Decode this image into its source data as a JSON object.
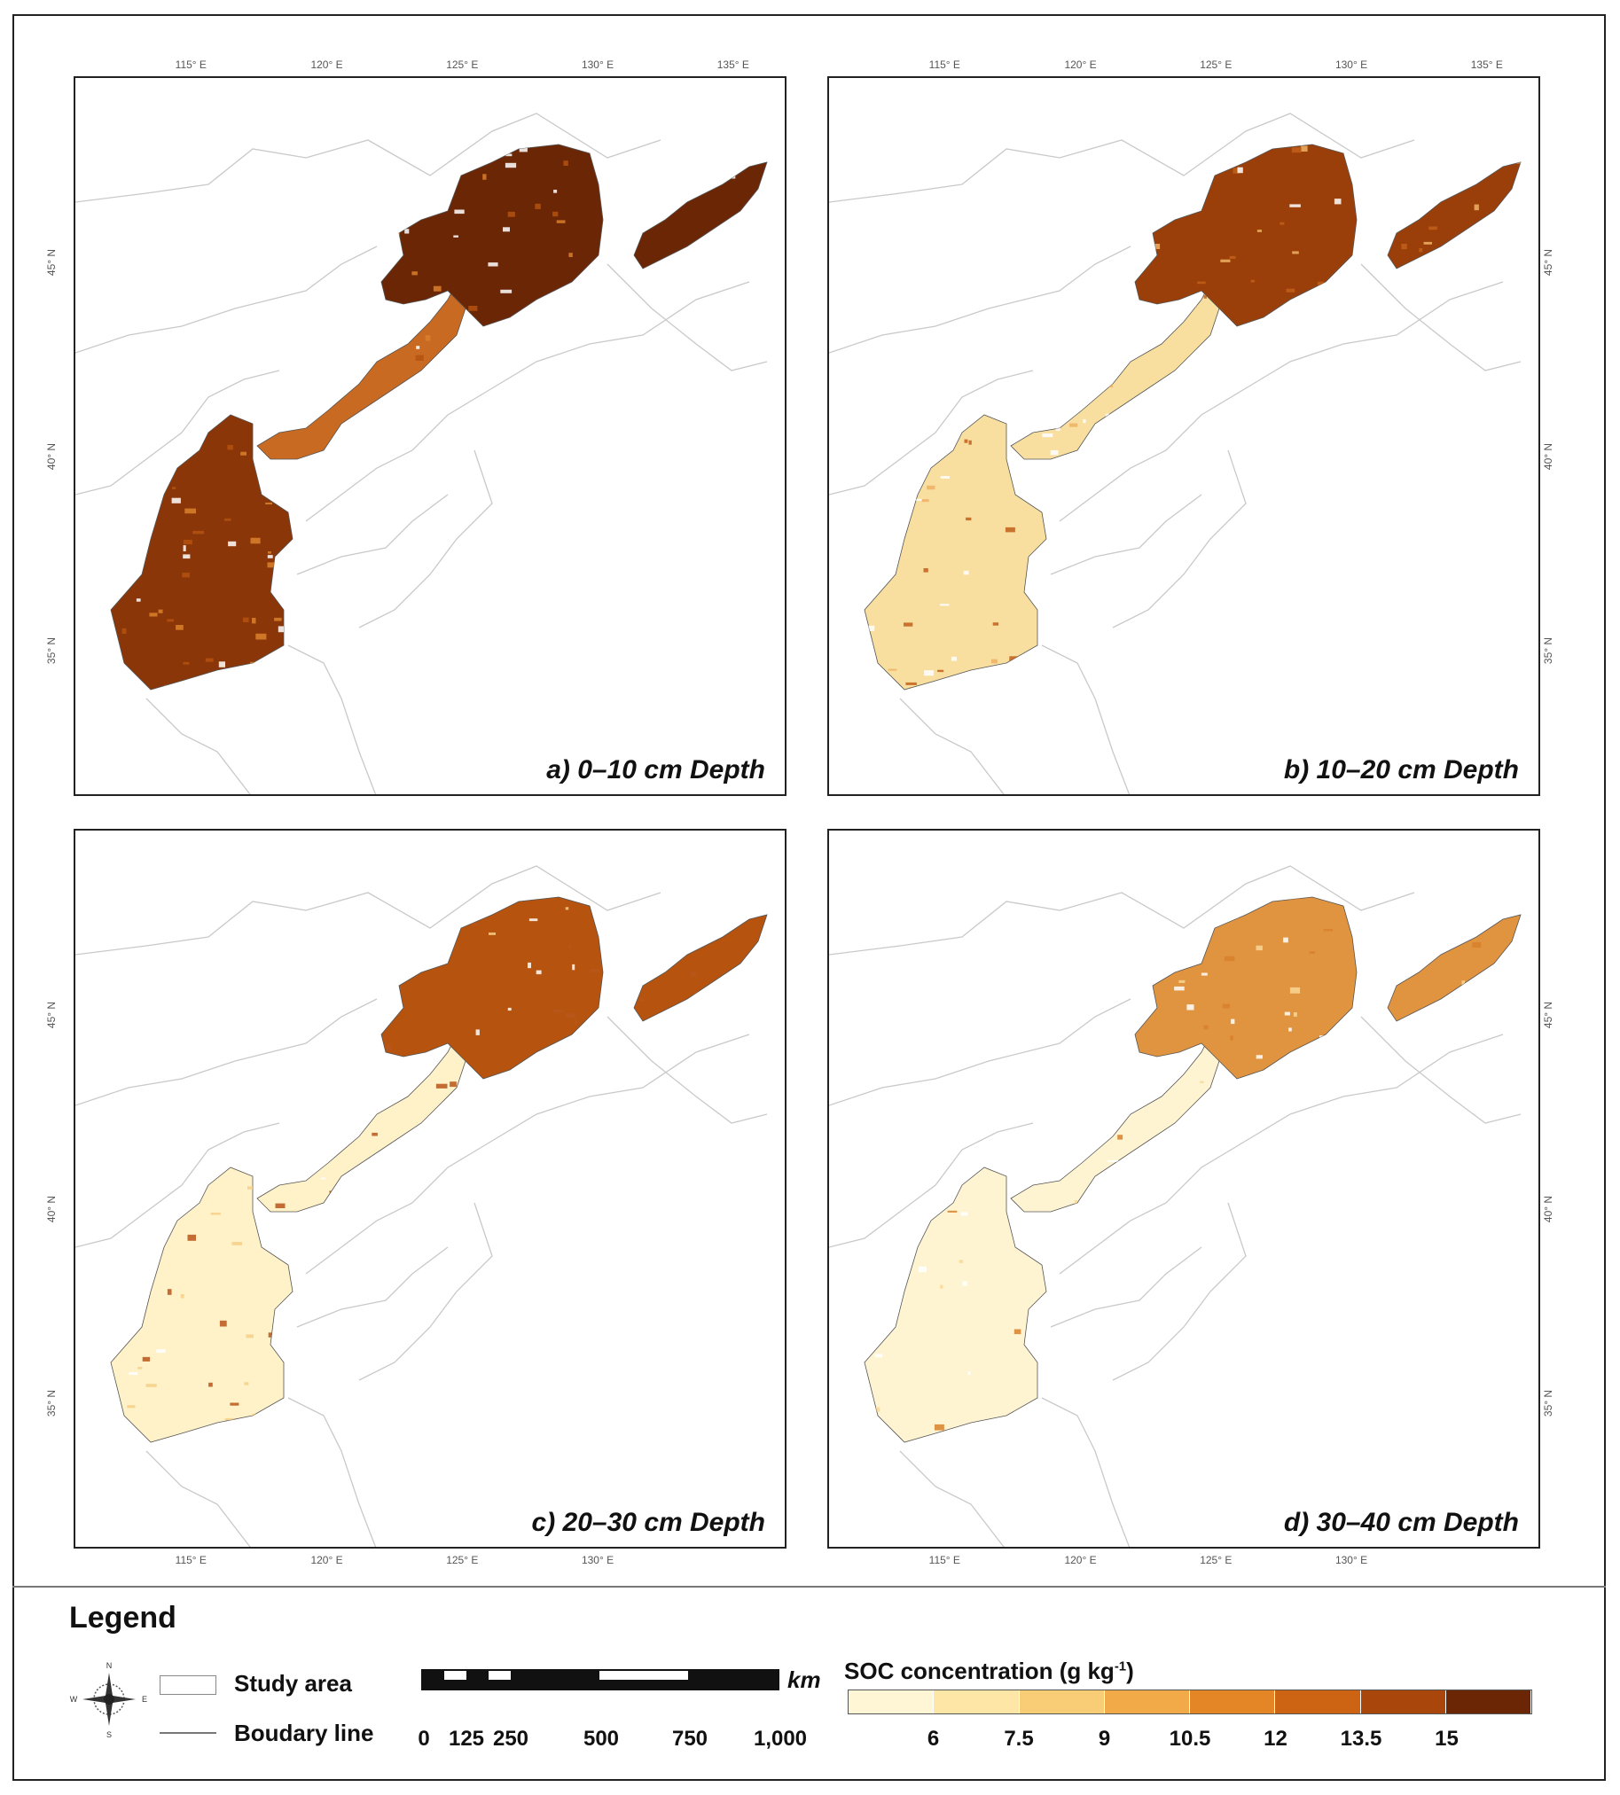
{
  "panels": [
    {
      "label": "a)  0–10 cm Depth",
      "top_ticks": [
        "115° E",
        "120° E",
        "125° E",
        "130° E",
        "135° E"
      ],
      "side_ticks": [
        "45° N",
        "40° N",
        "35° N"
      ],
      "bottom_ticks": [],
      "tone": "dark"
    },
    {
      "label": "b) 10–20 cm Depth",
      "top_ticks": [
        "115° E",
        "120° E",
        "125° E",
        "130° E",
        "135° E"
      ],
      "side_ticks": [
        "45° N",
        "40° N",
        "35° N"
      ],
      "bottom_ticks": [],
      "tone": "mid"
    },
    {
      "label": "c) 20–30 cm Depth",
      "top_ticks": [],
      "side_ticks": [
        "45° N",
        "40° N",
        "35° N"
      ],
      "bottom_ticks": [
        "115° E",
        "120° E",
        "125° E",
        "130° E"
      ],
      "tone": "light"
    },
    {
      "label": "d) 30–40 cm Depth",
      "top_ticks": [],
      "side_ticks": [
        "45° N",
        "40° N",
        "35° N"
      ],
      "bottom_ticks": [
        "115° E",
        "120° E",
        "125° E",
        "130° E"
      ],
      "tone": "lightest"
    }
  ],
  "legend": {
    "title": "Legend",
    "compass_letters": [
      "N",
      "E",
      "S",
      "W"
    ],
    "study_area": "Study area",
    "boundary_line": "Boudary line",
    "scale_unit": "km",
    "scale_labels": [
      "0",
      "125",
      "250",
      "500",
      "750",
      "1,000"
    ],
    "soc_title": "SOC concentration (g kg",
    "soc_exponent": "-1",
    "soc_title_close": ")",
    "colorbar_labels": [
      "6",
      "7.5",
      "9",
      "10.5",
      "12",
      "13.5",
      "15"
    ],
    "colorbar_colors": [
      "#fff6d6",
      "#fde6a6",
      "#f9cd76",
      "#f2aa48",
      "#e58626",
      "#cc6414",
      "#a9460c",
      "#6b2605"
    ]
  }
}
